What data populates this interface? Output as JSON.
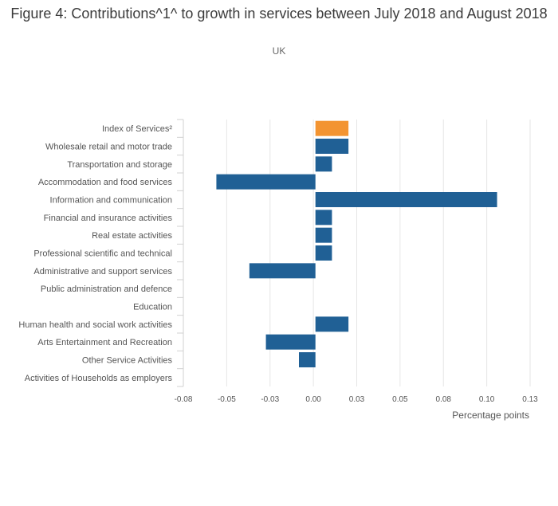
{
  "chart_data": {
    "type": "bar",
    "orientation": "horizontal",
    "title": "Figure 4: Contributions^1^ to growth in services between July 2018 and August 2018",
    "subtitle": "UK",
    "xlabel": "Percentage points",
    "ylabel": "",
    "xlim": [
      -0.08,
      0.13
    ],
    "x_tick_labels": [
      "-0.08",
      "-0.05",
      "-0.03",
      "0.00",
      "0.03",
      "0.05",
      "0.08",
      "0.10",
      "0.13"
    ],
    "grid": true,
    "colors": {
      "highlight": "#f39431",
      "default": "#206095",
      "grid": "#e6e6e6"
    },
    "categories": [
      "Index of Services²",
      "Wholesale retail and motor trade",
      "Transportation and storage",
      "Accommodation and food services",
      "Information and communication",
      "Financial and insurance activities",
      "Real estate activities",
      "Professional scientific and technical",
      "Administrative and support services",
      "Public administration and defence",
      "Education",
      "Human health and social work activities",
      "Arts Entertainment and Recreation",
      "Other Service Activities",
      "Activities of Households as employers"
    ],
    "values": [
      0.02,
      0.02,
      0.01,
      -0.06,
      0.11,
      0.01,
      0.01,
      0.01,
      -0.04,
      0.0,
      0.0,
      0.02,
      -0.03,
      -0.01,
      0.0
    ],
    "highlight_index": 0
  }
}
